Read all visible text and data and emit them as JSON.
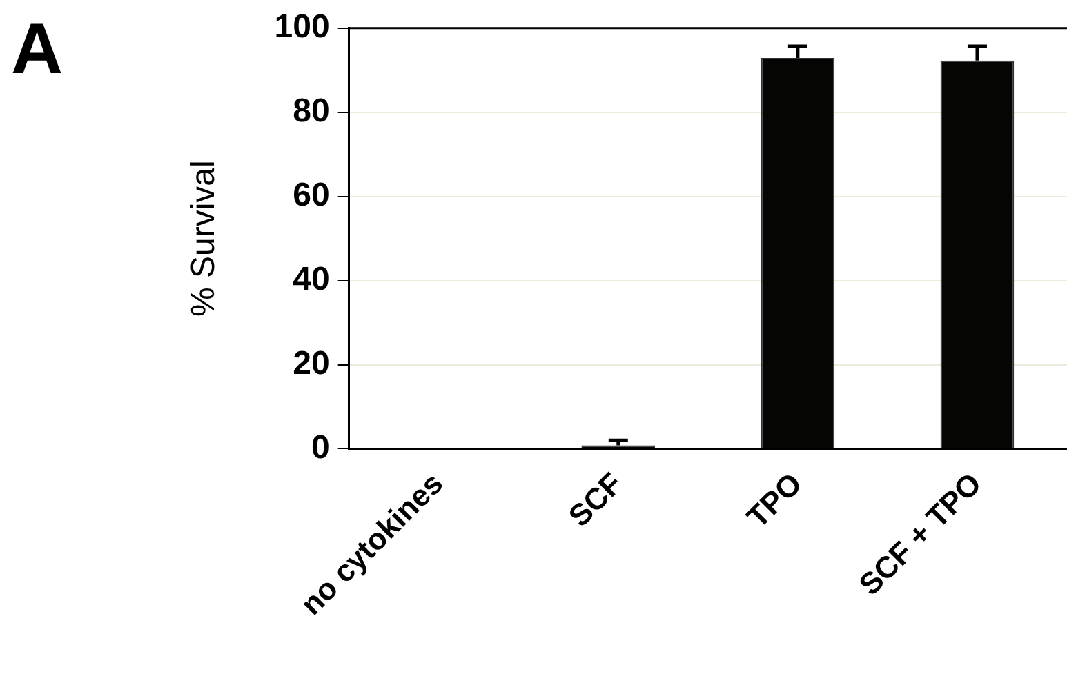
{
  "chart_data": {
    "type": "bar",
    "title": "A",
    "ylabel": "% Survival",
    "categories": [
      "no cytokines",
      "SCF",
      "TPO",
      "SCF + TPO"
    ],
    "values": [
      0,
      0.8,
      92.9,
      92.3
    ],
    "errors": [
      null,
      [
        0.8,
        2
      ],
      [
        92.9,
        95.7
      ],
      [
        92.3,
        95.7
      ]
    ],
    "color": "#050604",
    "ylim": [
      0,
      100
    ],
    "yticks": [
      0,
      20,
      40,
      60,
      80,
      100
    ],
    "grid": "y",
    "legend": false
  }
}
